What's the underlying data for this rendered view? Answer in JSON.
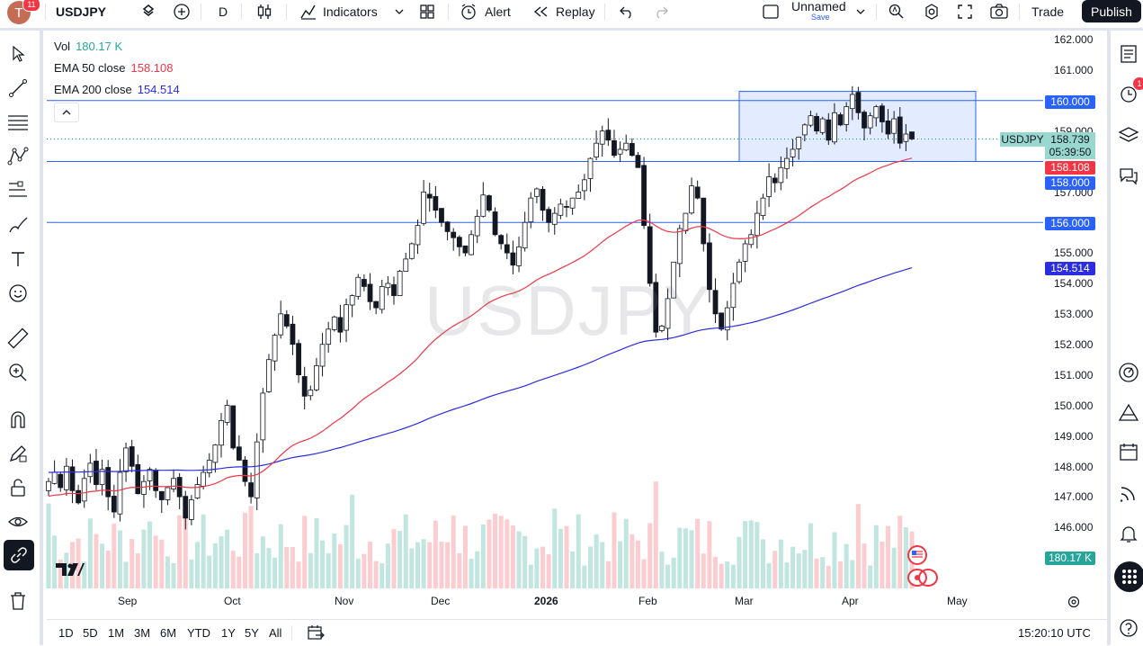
{
  "toolbar": {
    "avatar_letter": "T",
    "avatar_badge": "11",
    "symbol": "USDJPY",
    "interval": "D",
    "indicators_label": "Indicators",
    "alert_label": "Alert",
    "replay_label": "Replay",
    "layout_name": "Unnamed",
    "layout_save": "Save",
    "trade_label": "Trade",
    "publish_label": "Publish"
  },
  "legend": {
    "vol_label": "Vol",
    "vol_value": "180.17 K",
    "ema50_label": "EMA 50 close",
    "ema50_value": "158.108",
    "ema200_label": "EMA 200 close",
    "ema200_value": "154.514"
  },
  "watermark": "USDJPY",
  "price_axis": {
    "ticks": [
      "162.000",
      "161.000",
      "159.000",
      "157.000",
      "155.000",
      "154.000",
      "153.000",
      "152.000",
      "151.000",
      "150.000",
      "149.000",
      "148.000",
      "147.000",
      "146.000"
    ],
    "labels": {
      "hline_160": "160.000",
      "symbol_tag": "USDJPY",
      "last_price": "158.739",
      "countdown": "05:39:50",
      "ema50": "158.108",
      "hline_158": "158.000",
      "hline_156": "156.000",
      "ema200": "154.514",
      "volume": "180.17 K"
    }
  },
  "time_axis": [
    "Sep",
    "Oct",
    "Nov",
    "Dec",
    "2026",
    "Feb",
    "Mar",
    "Apr",
    "May"
  ],
  "bottom": {
    "ranges": [
      "1D",
      "5D",
      "1M",
      "3M",
      "6M",
      "YTD",
      "1Y",
      "5Y",
      "All"
    ],
    "clock": "15:20:10 UTC"
  },
  "right_panel": {
    "alerts_badge": "1"
  },
  "colors": {
    "up": "#089981",
    "down": "#f23645",
    "ema50": "#f23645",
    "ema200": "#2a2ee0",
    "hline": "#2962ff",
    "accent": "#2962ff"
  },
  "chart_data": {
    "type": "candlestick",
    "symbol": "USDJPY",
    "interval": "D",
    "ylim": [
      145.5,
      162.5
    ],
    "x_labels": [
      "Sep",
      "Oct",
      "Nov",
      "Dec",
      "2026",
      "Feb",
      "Mar",
      "Apr",
      "May"
    ],
    "horizontal_lines": [
      160.0,
      158.0,
      156.0
    ],
    "range_box": {
      "from": "Mar",
      "to": "Apr",
      "top": 160.3,
      "bottom": 158.0
    },
    "close_path": [
      147.5,
      147.8,
      147.3,
      148.0,
      147.2,
      146.8,
      147.6,
      148.1,
      147.4,
      147.9,
      147.0,
      146.5,
      147.8,
      148.6,
      148.0,
      147.1,
      147.5,
      147.9,
      147.2,
      146.9,
      147.3,
      147.6,
      147.0,
      146.3,
      146.9,
      147.4,
      147.8,
      148.2,
      148.7,
      149.5,
      150.0,
      148.6,
      148.2,
      147.5,
      147.0,
      148.8,
      150.4,
      151.5,
      152.3,
      153.0,
      152.6,
      152.0,
      151.0,
      150.3,
      150.5,
      151.3,
      152.0,
      152.5,
      152.9,
      152.4,
      153.3,
      153.6,
      154.2,
      153.9,
      153.4,
      153.2,
      153.9,
      154.0,
      153.6,
      154.4,
      154.8,
      155.3,
      155.9,
      157.0,
      156.8,
      156.4,
      156.0,
      155.7,
      155.5,
      155.2,
      155.0,
      155.6,
      156.2,
      156.9,
      156.4,
      155.6,
      155.3,
      155.0,
      154.6,
      155.2,
      156.0,
      156.8,
      157.1,
      156.4,
      156.0,
      156.3,
      156.6,
      156.5,
      156.8,
      157.0,
      157.4,
      158.1,
      158.6,
      159.0,
      158.7,
      158.2,
      158.4,
      158.6,
      158.2,
      157.8,
      155.9,
      154.0,
      152.4,
      152.6,
      153.5,
      154.7,
      155.8,
      156.3,
      157.2,
      156.8,
      155.3,
      153.8,
      153.0,
      152.5,
      153.2,
      154.0,
      154.7,
      155.3,
      155.6,
      156.3,
      156.8,
      157.5,
      157.3,
      157.8,
      158.1,
      158.4,
      158.8,
      159.2,
      159.5,
      159.0,
      159.4,
      158.7,
      159.6,
      159.2,
      159.8,
      160.2,
      159.6,
      159.1,
      159.5,
      159.8,
      159.3,
      158.9,
      159.4,
      158.6,
      158.9,
      158.74
    ],
    "ema50_last": 158.108,
    "ema200_last": 154.514,
    "last_price": 158.739,
    "volume_last": "180.17 K"
  }
}
